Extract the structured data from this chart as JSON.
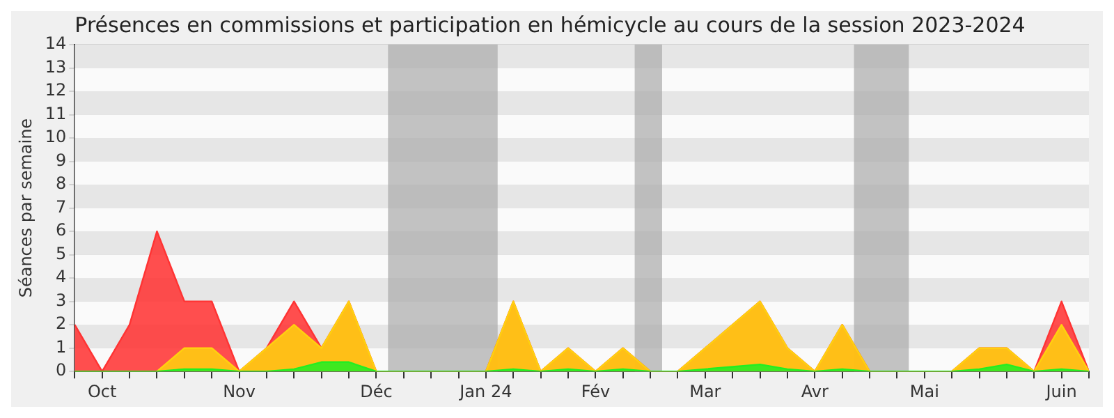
{
  "chart_data": {
    "type": "area",
    "title": "Présences en commissions et participation en hémicycle au cours de la session 2023-2024",
    "ylabel": "Séances par semaine",
    "x": [
      "2023-09-25",
      "2023-10-02",
      "2023-10-09",
      "2023-10-16",
      "2023-10-23",
      "2023-10-30",
      "2023-11-06",
      "2023-11-13",
      "2023-11-20",
      "2023-11-27",
      "2023-12-04",
      "2023-12-11",
      "2023-12-18",
      "2023-12-25",
      "2024-01-01",
      "2024-01-08",
      "2024-01-15",
      "2024-01-22",
      "2024-01-29",
      "2024-02-05",
      "2024-02-12",
      "2024-02-19",
      "2024-02-26",
      "2024-03-04",
      "2024-03-11",
      "2024-03-18",
      "2024-03-25",
      "2024-04-01",
      "2024-04-08",
      "2024-04-15",
      "2024-04-22",
      "2024-04-29",
      "2024-05-06",
      "2024-05-13",
      "2024-05-20",
      "2024-05-27",
      "2024-06-03",
      "2024-06-10"
    ],
    "series": [
      {
        "color": "#ff3333",
        "values": [
          2,
          0,
          2,
          6,
          3,
          3,
          0,
          1,
          3,
          1,
          3,
          0,
          0,
          0,
          0,
          0,
          3,
          0,
          1,
          0,
          1,
          0,
          0,
          1,
          2,
          3,
          1,
          0,
          2,
          0,
          0,
          0,
          0,
          1,
          1,
          0,
          3,
          0
        ]
      },
      {
        "color": "#ffd10f",
        "values": [
          0,
          0,
          0,
          0,
          1,
          1,
          0,
          1,
          2,
          1,
          3,
          0,
          0,
          0,
          0,
          0,
          3,
          0,
          1,
          0,
          1,
          0,
          0,
          1,
          2,
          3,
          1,
          0,
          2,
          0,
          0,
          0,
          0,
          1,
          1,
          0,
          2,
          0
        ]
      },
      {
        "color": "#22ee22",
        "values": [
          0,
          0,
          0,
          0,
          0.1,
          0.1,
          0,
          0,
          0.1,
          0.4,
          0.4,
          0,
          0,
          0,
          0,
          0,
          0.1,
          0,
          0.1,
          0,
          0.1,
          0,
          0,
          0.1,
          0.2,
          0.3,
          0.1,
          0,
          0.1,
          0,
          0,
          0,
          0,
          0.1,
          0.3,
          0,
          0.1,
          0
        ]
      }
    ],
    "xlim": [
      "2023-09-25",
      "2024-06-10"
    ],
    "xticks": [
      {
        "value": "2023-09-25",
        "label": null
      },
      {
        "value": "2023-10-02",
        "label": "Oct"
      },
      {
        "value": "2023-10-09",
        "label": null
      },
      {
        "value": "2023-10-16",
        "label": null
      },
      {
        "value": "2023-10-23",
        "label": null
      },
      {
        "value": "2023-10-30",
        "label": null
      },
      {
        "value": "2023-11-06",
        "label": "Nov"
      },
      {
        "value": "2023-11-13",
        "label": null
      },
      {
        "value": "2023-11-20",
        "label": null
      },
      {
        "value": "2023-11-27",
        "label": null
      },
      {
        "value": "2023-12-04",
        "label": null
      },
      {
        "value": "2023-12-11",
        "label": "Déc"
      },
      {
        "value": "2023-12-18",
        "label": null
      },
      {
        "value": "2023-12-25",
        "label": null
      },
      {
        "value": "2024-01-01",
        "label": null
      },
      {
        "value": "2024-01-08",
        "label": "Jan 24"
      },
      {
        "value": "2024-01-15",
        "label": null
      },
      {
        "value": "2024-01-22",
        "label": null
      },
      {
        "value": "2024-01-29",
        "label": null
      },
      {
        "value": "2024-02-05",
        "label": "Fév"
      },
      {
        "value": "2024-02-12",
        "label": null
      },
      {
        "value": "2024-02-19",
        "label": null
      },
      {
        "value": "2024-02-26",
        "label": null
      },
      {
        "value": "2024-03-04",
        "label": "Mar"
      },
      {
        "value": "2024-03-11",
        "label": null
      },
      {
        "value": "2024-03-18",
        "label": null
      },
      {
        "value": "2024-03-25",
        "label": null
      },
      {
        "value": "2024-04-01",
        "label": "Avr"
      },
      {
        "value": "2024-04-08",
        "label": null
      },
      {
        "value": "2024-04-15",
        "label": null
      },
      {
        "value": "2024-04-22",
        "label": null
      },
      {
        "value": "2024-04-29",
        "label": "Mai"
      },
      {
        "value": "2024-05-06",
        "label": null
      },
      {
        "value": "2024-05-13",
        "label": null
      },
      {
        "value": "2024-05-20",
        "label": null
      },
      {
        "value": "2024-05-27",
        "label": null
      },
      {
        "value": "2024-06-03",
        "label": "Juin"
      },
      {
        "value": "2024-06-10",
        "label": null
      }
    ],
    "ylim": [
      0,
      14
    ],
    "yticks": [
      0,
      1,
      2,
      3,
      4,
      5,
      6,
      7,
      8,
      9,
      10,
      11,
      12,
      13,
      14
    ],
    "grid": "y",
    "bands": [
      {
        "axis": "x",
        "from": "2023-12-14",
        "to": "2024-01-11",
        "color": "#aaaaaa"
      },
      {
        "axis": "x",
        "from": "2024-02-15",
        "to": "2024-02-22",
        "color": "#aaaaaa"
      },
      {
        "axis": "x",
        "from": "2024-04-11",
        "to": "2024-04-25",
        "color": "#aaaaaa"
      }
    ]
  }
}
